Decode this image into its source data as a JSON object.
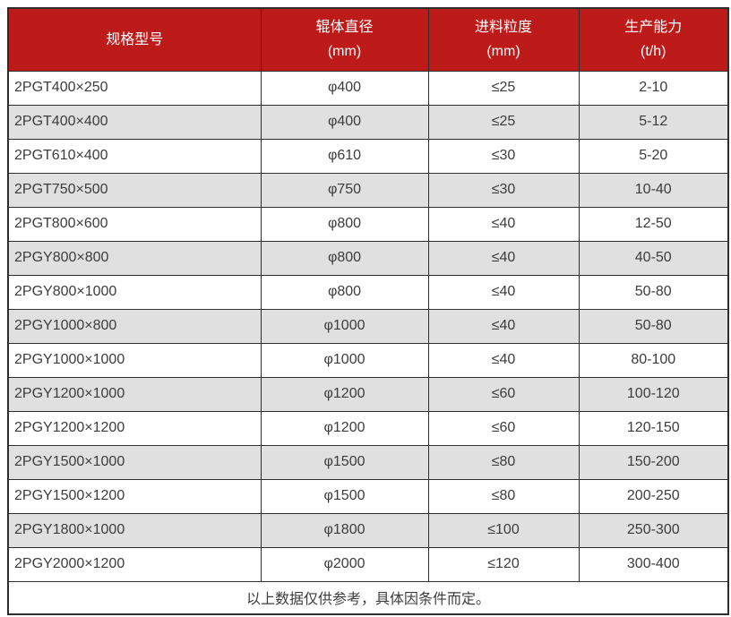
{
  "colors": {
    "header_bg": "#bc1b19",
    "header_text": "#ffffff",
    "row_bg": "#ffffff",
    "row_alt_bg": "#e0e0e0",
    "border": "#2e2e2e",
    "body_text": "#3c3c3c"
  },
  "table": {
    "columns": [
      {
        "title": "规格型号",
        "unit": ""
      },
      {
        "title": "辊体直径",
        "unit": "(mm)"
      },
      {
        "title": "进料粒度",
        "unit": "(mm)"
      },
      {
        "title": "生产能力",
        "unit": "(t/h)"
      }
    ],
    "rows": [
      {
        "model": "2PGT400×250",
        "roller_diameter": "φ400",
        "feed_size": "≤25",
        "capacity": "2-10"
      },
      {
        "model": "2PGT400×400",
        "roller_diameter": "φ400",
        "feed_size": "≤25",
        "capacity": "5-12"
      },
      {
        "model": "2PGT610×400",
        "roller_diameter": "φ610",
        "feed_size": "≤30",
        "capacity": "5-20"
      },
      {
        "model": "2PGT750×500",
        "roller_diameter": "φ750",
        "feed_size": "≤30",
        "capacity": "10-40"
      },
      {
        "model": "2PGT800×600",
        "roller_diameter": "φ800",
        "feed_size": "≤40",
        "capacity": "12-50"
      },
      {
        "model": "2PGY800×800",
        "roller_diameter": "φ800",
        "feed_size": "≤40",
        "capacity": "40-50"
      },
      {
        "model": "2PGY800×1000",
        "roller_diameter": "φ800",
        "feed_size": "≤40",
        "capacity": "50-80"
      },
      {
        "model": "2PGY1000×800",
        "roller_diameter": "φ1000",
        "feed_size": "≤40",
        "capacity": "50-80"
      },
      {
        "model": "2PGY1000×1000",
        "roller_diameter": "φ1000",
        "feed_size": "≤40",
        "capacity": "80-100"
      },
      {
        "model": "2PGY1200×1000",
        "roller_diameter": "φ1200",
        "feed_size": "≤60",
        "capacity": "100-120"
      },
      {
        "model": "2PGY1200×1200",
        "roller_diameter": "φ1200",
        "feed_size": "≤60",
        "capacity": "120-150"
      },
      {
        "model": "2PGY1500×1000",
        "roller_diameter": "φ1500",
        "feed_size": "≤80",
        "capacity": "150-200"
      },
      {
        "model": "2PGY1500×1200",
        "roller_diameter": "φ1500",
        "feed_size": "≤80",
        "capacity": "200-250"
      },
      {
        "model": "2PGY1800×1000",
        "roller_diameter": "φ1800",
        "feed_size": "≤100",
        "capacity": "250-300"
      },
      {
        "model": "2PGY2000×1200",
        "roller_diameter": "φ2000",
        "feed_size": "≤120",
        "capacity": "300-400"
      }
    ],
    "footer_note": "以上数据仅供参考，具体因条件而定。"
  }
}
